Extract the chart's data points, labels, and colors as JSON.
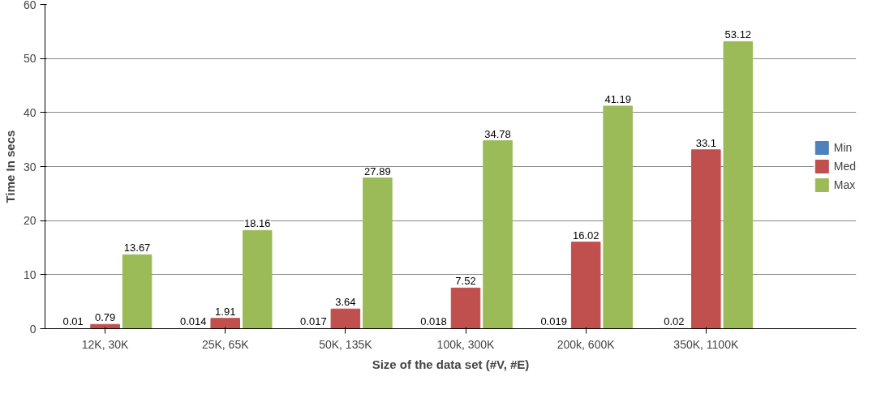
{
  "chart_data": {
    "type": "bar",
    "xlabel": "Size of the data set (#V, #E)",
    "ylabel": "Time In secs",
    "categories": [
      "12K, 30K",
      "25K, 65K",
      "50K, 135K",
      "100k, 300K",
      "200k, 600K",
      "350K, 1100K"
    ],
    "series": [
      {
        "name": "Min",
        "color": "#4f81bd",
        "values": [
          0.01,
          0.014,
          0.017,
          0.018,
          0.019,
          0.02
        ]
      },
      {
        "name": "Med",
        "color": "#c0504d",
        "values": [
          0.79,
          1.91,
          3.64,
          7.52,
          16.02,
          33.1
        ]
      },
      {
        "name": "Max",
        "color": "#9bbb59",
        "values": [
          13.67,
          18.16,
          27.89,
          34.78,
          41.19,
          53.12
        ]
      }
    ],
    "ylim": [
      0,
      60
    ],
    "yticks": [
      0,
      10,
      20,
      30,
      40,
      50,
      60
    ],
    "grid": "y",
    "legend": "right",
    "data_labels": true
  }
}
